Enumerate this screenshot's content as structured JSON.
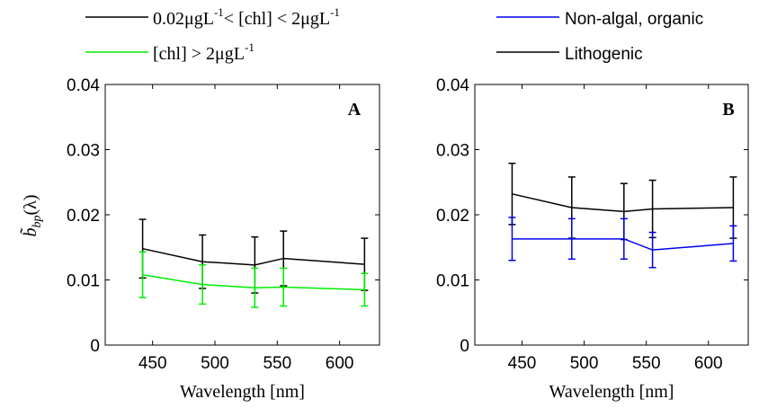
{
  "legend": {
    "left": [
      {
        "label_parts": [
          "0.02μgL",
          "-1",
          "< [chl] < 2μgL",
          "-1"
        ],
        "color": "#000000"
      },
      {
        "label_parts": [
          "[chl] > 2μgL",
          "-1",
          "",
          ""
        ],
        "color": "#00ee00"
      }
    ],
    "right": [
      {
        "label": "Non-algal, organic",
        "color": "#0000ee"
      },
      {
        "label": "Lithogenic",
        "color": "#000000"
      }
    ]
  },
  "ylabel": {
    "main": "b̃",
    "sub": "bp",
    "tail": "(λ)"
  },
  "chart_data": [
    {
      "type": "line",
      "panel_label": "A",
      "xlabel": "Wavelength [nm]",
      "xlim": [
        412,
        632
      ],
      "ylim": [
        0,
        0.04
      ],
      "xticks": [
        450,
        500,
        550,
        600
      ],
      "yticks": [
        0,
        0.01,
        0.02,
        0.03,
        0.04
      ],
      "ytick_labels": [
        "0",
        "0.01",
        "0.02",
        "0.03",
        "0.04"
      ],
      "x": [
        442,
        490,
        532,
        555,
        620
      ],
      "series": [
        {
          "color": "#000000",
          "values": [
            0.0148,
            0.0128,
            0.0123,
            0.0133,
            0.0124
          ],
          "err": [
            0.0045,
            0.0041,
            0.0043,
            0.0042,
            0.004
          ]
        },
        {
          "color": "#00ee00",
          "values": [
            0.0108,
            0.0093,
            0.0088,
            0.0089,
            0.0085
          ],
          "err": [
            0.0035,
            0.003,
            0.003,
            0.0029,
            0.0025
          ]
        }
      ]
    },
    {
      "type": "line",
      "panel_label": "B",
      "xlabel": "Wavelength [nm]",
      "xlim": [
        412,
        632
      ],
      "ylim": [
        0,
        0.04
      ],
      "xticks": [
        450,
        500,
        550,
        600
      ],
      "yticks": [
        0,
        0.01,
        0.02,
        0.03,
        0.04
      ],
      "ytick_labels": [
        "0",
        "0.01",
        "0.02",
        "0.03",
        "0.04"
      ],
      "x": [
        442,
        490,
        532,
        555,
        620
      ],
      "series": [
        {
          "color": "#000000",
          "values": [
            0.0232,
            0.0211,
            0.0205,
            0.0209,
            0.0211
          ],
          "err": [
            0.0047,
            0.0047,
            0.0043,
            0.0044,
            0.0047
          ]
        },
        {
          "color": "#0000ee",
          "values": [
            0.0163,
            0.0163,
            0.0163,
            0.0146,
            0.0156
          ],
          "err": [
            0.0033,
            0.0031,
            0.0031,
            0.0027,
            0.0027
          ]
        }
      ]
    }
  ]
}
